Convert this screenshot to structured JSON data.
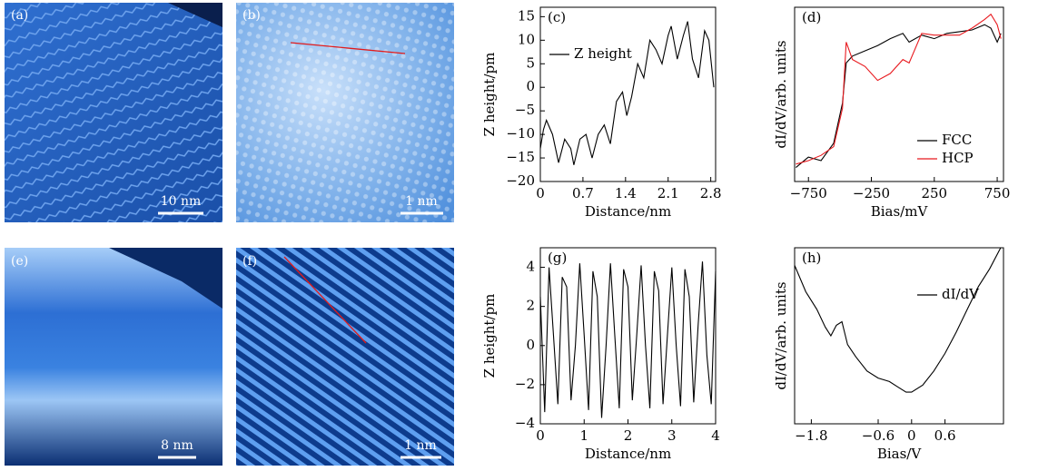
{
  "images": [
    {
      "label": "(a)",
      "scale": "10 nm"
    },
    {
      "label": "(b)",
      "scale": "1 nm"
    },
    {
      "label": "(e)",
      "scale": "8 nm"
    },
    {
      "label": "(f)",
      "scale": "1 nm"
    }
  ],
  "chart_data": [
    {
      "type": "line",
      "label": "(c)",
      "xlabel": "Distance/nm",
      "ylabel": "Z height/pm",
      "legend": "upper left",
      "xlim": [
        0,
        2.88
      ],
      "ylim": [
        -20,
        17
      ],
      "xticks": [
        0,
        0.7,
        1.4,
        2.1,
        2.8
      ],
      "yticks": [
        {
          "value": -20,
          "label": "−20"
        },
        {
          "value": -15,
          "label": "−15"
        },
        {
          "value": -10,
          "label": "−10"
        },
        {
          "value": -5,
          "label": "−5"
        },
        0,
        5,
        10,
        15
      ],
      "x": [
        0,
        0.05,
        0.1,
        0.2,
        0.3,
        0.4,
        0.5,
        0.55,
        0.65,
        0.75,
        0.85,
        0.95,
        1.05,
        1.15,
        1.25,
        1.35,
        1.42,
        1.5,
        1.6,
        1.7,
        1.8,
        1.9,
        2.0,
        2.1,
        2.15,
        2.25,
        2.35,
        2.42,
        2.5,
        2.6,
        2.7,
        2.77,
        2.85
      ],
      "series": [
        {
          "name": "Z height",
          "color": "#000000",
          "values": [
            -13,
            -9,
            -7,
            -10,
            -16,
            -11,
            -13,
            -16.5,
            -11,
            -10,
            -15,
            -10,
            -8,
            -12,
            -3,
            -1,
            -6,
            -2,
            5,
            2,
            10,
            8,
            5,
            11,
            13,
            6,
            11,
            14,
            6,
            2,
            12,
            10,
            0
          ]
        }
      ]
    },
    {
      "type": "line",
      "label": "(d)",
      "xlabel": "Bias/mV",
      "ylabel": "dI/dV/arb. units",
      "legend": "lower right",
      "xlim": [
        -860,
        800
      ],
      "ylim": [
        0,
        100
      ],
      "xticks": [
        {
          "value": -750,
          "label": "−750"
        },
        {
          "value": -250,
          "label": "−250"
        },
        250,
        750
      ],
      "x": [
        -850,
        -750,
        -650,
        -550,
        -480,
        -450,
        -400,
        -300,
        -200,
        -100,
        0,
        50,
        150,
        250,
        350,
        450,
        550,
        650,
        700,
        750,
        780
      ],
      "series": [
        {
          "name": "FCC",
          "color": "#000000",
          "values": [
            8,
            14,
            12,
            22,
            45,
            68,
            72,
            75,
            78,
            82,
            85,
            80,
            84,
            82,
            85,
            86,
            87,
            90,
            88,
            80,
            85
          ]
        },
        {
          "name": "HCP",
          "color": "#e8191e",
          "values": [
            10,
            12,
            15,
            20,
            42,
            80,
            70,
            66,
            58,
            62,
            70,
            68,
            85,
            84,
            84,
            84,
            88,
            93,
            96,
            90,
            82
          ]
        }
      ]
    },
    {
      "type": "line",
      "label": "(g)",
      "xlabel": "Distance/nm",
      "ylabel": "Z height/pm",
      "xlim": [
        0,
        4
      ],
      "ylim": [
        -4,
        5
      ],
      "xticks": [
        0,
        1,
        2,
        3,
        4
      ],
      "yticks": [
        {
          "value": -4,
          "label": "−4"
        },
        {
          "value": -2,
          "label": "−2"
        },
        0,
        2,
        4
      ],
      "x": [
        0,
        0.1,
        0.2,
        0.3,
        0.4,
        0.5,
        0.6,
        0.7,
        0.8,
        0.9,
        1.0,
        1.1,
        1.2,
        1.3,
        1.4,
        1.5,
        1.6,
        1.7,
        1.8,
        1.9,
        2.0,
        2.1,
        2.2,
        2.3,
        2.4,
        2.5,
        2.6,
        2.7,
        2.8,
        2.9,
        3.0,
        3.1,
        3.2,
        3.3,
        3.4,
        3.5,
        3.6,
        3.7,
        3.8,
        3.9,
        4.0
      ],
      "series": [
        {
          "color": "#000000",
          "values": [
            2.5,
            -3.4,
            4,
            0.5,
            -3,
            3.5,
            3,
            -2.8,
            0,
            4.2,
            0.5,
            -3.3,
            3.8,
            2.5,
            -3.7,
            0,
            4.2,
            0.5,
            -3.2,
            3.9,
            3,
            -2.8,
            0.5,
            4.1,
            0,
            -3.2,
            3.8,
            2.8,
            -3,
            0.5,
            4,
            0,
            -3.1,
            3.9,
            2.5,
            -2.9,
            1,
            4.3,
            -0.5,
            -3,
            3.8
          ]
        }
      ]
    },
    {
      "type": "line",
      "label": "(h)",
      "xlabel": "Bias/V",
      "ylabel": "dI/dV/arb. units",
      "legend": "upper right",
      "xlim": [
        -2.1,
        1.65
      ],
      "ylim": [
        0,
        100
      ],
      "xticks": [
        {
          "value": -1.8,
          "label": "−1.8"
        },
        {
          "value": -0.6,
          "label": "−0.6"
        },
        0,
        0.6
      ],
      "x": [
        -2.1,
        -1.9,
        -1.7,
        -1.55,
        -1.45,
        -1.35,
        -1.25,
        -1.15,
        -1.0,
        -0.8,
        -0.6,
        -0.4,
        -0.25,
        -0.1,
        0,
        0.2,
        0.4,
        0.6,
        0.8,
        1.0,
        1.2,
        1.4,
        1.6
      ],
      "series": [
        {
          "name": "dI/dV",
          "color": "#000000",
          "values": [
            90,
            75,
            65,
            55,
            50,
            56,
            58,
            45,
            38,
            30,
            26,
            24,
            21,
            18,
            18,
            22,
            30,
            40,
            52,
            65,
            78,
            88,
            100
          ]
        }
      ]
    }
  ]
}
